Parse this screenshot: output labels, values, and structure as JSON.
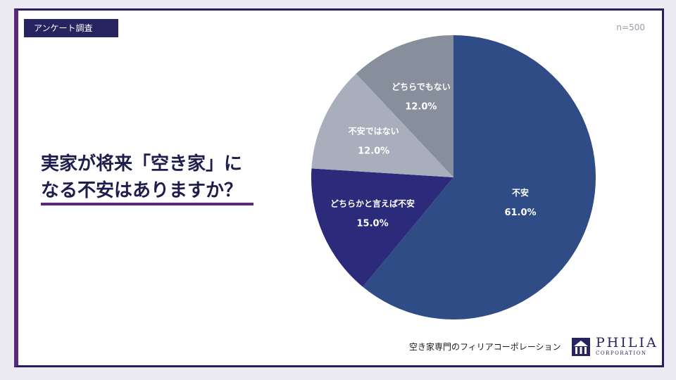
{
  "header": {
    "tag_label": "アンケート調査",
    "sample_size": "n=500"
  },
  "headline": {
    "line1": "実家が将来「空き家」に",
    "line2": "なる不安はありますか？"
  },
  "chart_data": {
    "type": "pie",
    "title": "",
    "unit": "%",
    "slices": [
      {
        "label": "不安",
        "value": 61.0,
        "display": "61.0%",
        "color": "#2f4c86",
        "label_color": "#ffffff"
      },
      {
        "label": "どちらかと言えば不安",
        "value": 15.0,
        "display": "15.0%",
        "color": "#2c2a7a",
        "label_color": "#ffffff"
      },
      {
        "label": "不安ではない",
        "value": 12.0,
        "display": "12.0%",
        "color": "#a9aebd",
        "label_color": "#ffffff"
      },
      {
        "label": "どちらでもない",
        "value": 12.0,
        "display": "12.0%",
        "color": "#878e9c",
        "label_color": "#ffffff"
      }
    ],
    "start_angle": "12 o'clock",
    "direction": "clockwise",
    "legend": "none",
    "data_labels": "inside"
  },
  "footer": {
    "company_text": "空き家専門のフィリアコーポレーション",
    "logo_word": "PHILIA",
    "logo_sub": "CORPORATION"
  },
  "colors": {
    "frame_border": "#2a1f5e",
    "accent": "#5a2a7a",
    "brand_navy": "#26235e"
  }
}
